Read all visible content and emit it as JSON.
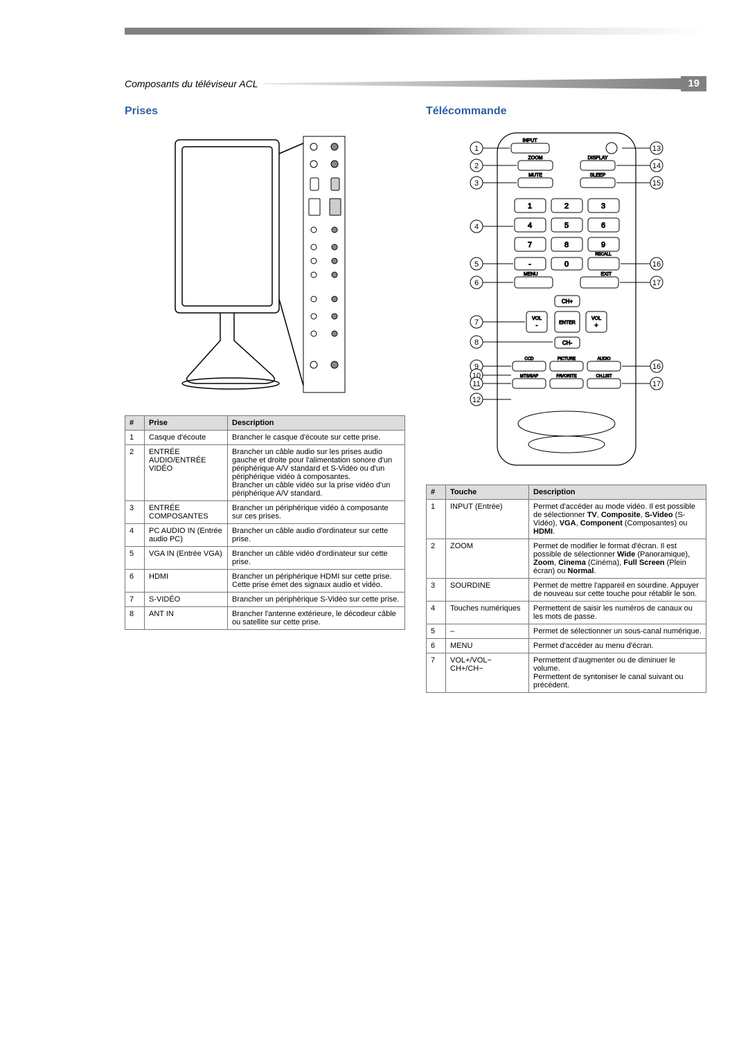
{
  "page": {
    "section_label": "Composants du téléviseur ACL",
    "page_number": "19"
  },
  "prises": {
    "title": "Prises",
    "headers": [
      "#",
      "Prise",
      "Description"
    ],
    "rows": [
      {
        "n": "1",
        "name": "Casque d'écoute",
        "desc": "Brancher le casque d'écoute sur cette prise."
      },
      {
        "n": "2",
        "name": "ENTRÉE AUDIO/ENTRÉE VIDÉO",
        "desc": "Brancher un câble audio sur les prises audio gauche et droite pour l'alimentation sonore d'un périphérique A/V standard et S-Vidéo ou d'un périphérique vidéo à composantes.\nBrancher un câble vidéo sur la prise vidéo d'un périphérique A/V standard."
      },
      {
        "n": "3",
        "name": "ENTRÉE COMPOSANTES",
        "desc": "Brancher un périphérique vidéo à composante sur ces prises."
      },
      {
        "n": "4",
        "name": "PC AUDIO IN (Entrée audio PC)",
        "desc": "Brancher un câble audio d'ordinateur sur cette prise."
      },
      {
        "n": "5",
        "name": "VGA IN (Entrée VGA)",
        "desc": "Brancher un câble vidéo d'ordinateur sur cette prise."
      },
      {
        "n": "6",
        "name": "HDMI",
        "desc": "Brancher un périphérique HDMI sur cette prise. Cette prise émet des signaux audio et vidéo."
      },
      {
        "n": "7",
        "name": "S-VIDÉO",
        "desc": "Brancher un périphérique S-Vidéo sur cette prise."
      },
      {
        "n": "8",
        "name": "ANT IN",
        "desc": "Brancher l'antenne extérieure, le décodeur câble ou satellite sur cette prise."
      }
    ]
  },
  "remote": {
    "title": "Télécommande",
    "headers": [
      "#",
      "Touche",
      "Description"
    ],
    "buttons": {
      "input": "INPUT",
      "zoom": "ZOOM",
      "display": "DISPLAY",
      "mute": "MUTE",
      "sleep": "SLEEP",
      "menu": "MENU",
      "exit": "EXIT",
      "recall": "RECALL",
      "chp": "CH+",
      "chm": "CH-",
      "volm": "VOL\n-",
      "volp": "VOL\n+",
      "enter": "ENTER",
      "ccd": "CCD",
      "picture": "PICTURE",
      "audio": "AUDIO",
      "mts": "MTS/SAP",
      "fav": "FAVORITE",
      "chlist": "CH.LIST",
      "dash": "-",
      "zero": "0"
    },
    "rows": [
      {
        "n": "1",
        "name": "INPUT (Entrée)",
        "desc": "Permet d'accéder au mode vidéo. Il est possible de sélectionner <b>TV</b>, <b>Composite</b>, <b>S-Video</b> (S-Vidéo), <b>VGA</b>, <b>Component</b> (Composantes) ou <b>HDMI</b>."
      },
      {
        "n": "2",
        "name": "ZOOM",
        "desc": "Permet de modifier le format d'écran. Il est possible de sélectionner <b>Wide</b> (Panoramique), <b>Zoom</b>, <b>Cinema</b> (Cinéma), <b>Full Screen</b> (Plein écran) ou <b>Normal</b>."
      },
      {
        "n": "3",
        "name": "SOURDINE",
        "desc": "Permet de mettre l'appareil en sourdine. Appuyer de nouveau sur cette touche pour rétablir le son."
      },
      {
        "n": "4",
        "name": "Touches numériques",
        "desc": "Permettent de saisir les numéros de canaux ou les mots de passe."
      },
      {
        "n": "5",
        "name": "–",
        "desc": "Permet de sélectionner un sous-canal numérique."
      },
      {
        "n": "6",
        "name": "MENU",
        "desc": "Permet d'accéder au menu d'écran."
      },
      {
        "n": "7",
        "name": "VOL+/VOL−\nCH+/CH−",
        "desc": "Permettent d'augmenter ou de diminuer le volume.\nPermettent de syntoniser le canal suivant ou précédent."
      }
    ]
  },
  "style": {
    "accent": "#2b5fa8",
    "header_bg": "#dddddd",
    "border": "#777777"
  }
}
